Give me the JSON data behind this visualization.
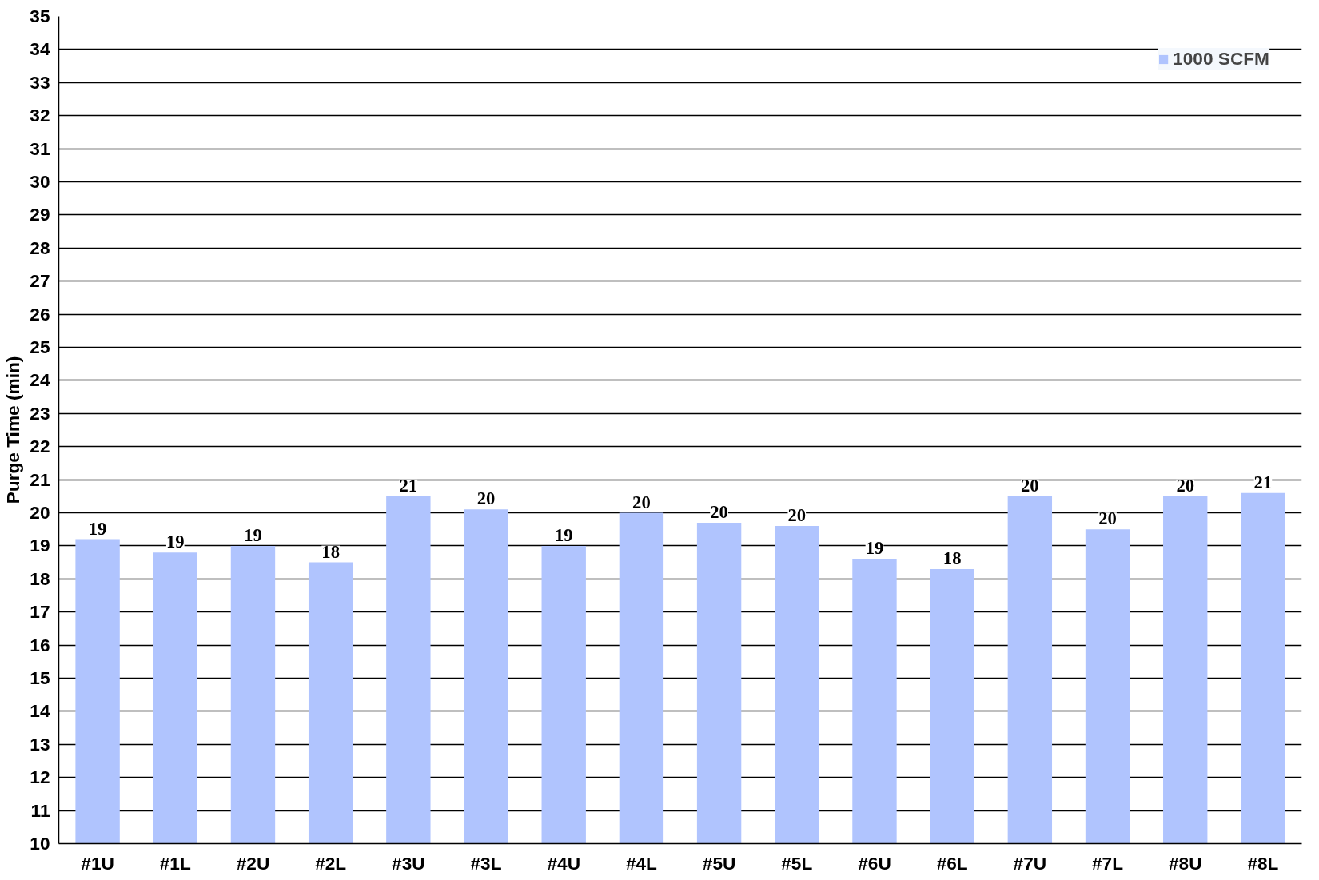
{
  "chart_data": {
    "type": "bar",
    "ylabel": "Purge Time (min)",
    "categories": [
      "#1U",
      "#1L",
      "#2U",
      "#2L",
      "#3U",
      "#3L",
      "#4U",
      "#4L",
      "#5U",
      "#5L",
      "#6U",
      "#6L",
      "#7U",
      "#7L",
      "#8U",
      "#8L"
    ],
    "series": [
      {
        "name": "1000 SCFM",
        "color": "#b0c4fe",
        "values": [
          19.2,
          18.8,
          19.0,
          18.5,
          20.5,
          20.1,
          19.0,
          20.0,
          19.7,
          19.6,
          18.6,
          18.3,
          20.5,
          19.5,
          20.5,
          20.6
        ],
        "value_labels": [
          "19",
          "19",
          "19",
          "18",
          "21",
          "20",
          "19",
          "20",
          "20",
          "20",
          "19",
          "18",
          "20",
          "20",
          "20",
          "21"
        ]
      }
    ],
    "ylim": [
      10,
      35
    ],
    "yticks": [
      10,
      11,
      12,
      13,
      14,
      15,
      16,
      17,
      18,
      19,
      20,
      21,
      22,
      23,
      24,
      25,
      26,
      27,
      28,
      29,
      30,
      31,
      32,
      33,
      34,
      35
    ],
    "grid": "y",
    "legend": "top right"
  }
}
